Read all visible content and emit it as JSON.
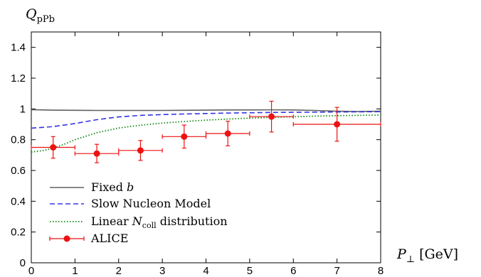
{
  "chart_data": {
    "type": "line",
    "ylabel": "Q",
    "ylabel_sub": "pPb",
    "xlabel": "P",
    "xlabel_sub": "⊥",
    "xlabel_unit": "[GeV]",
    "xlim": [
      0,
      8
    ],
    "ylim": [
      0,
      1.5
    ],
    "xticks": [
      "0",
      "1",
      "2",
      "3",
      "4",
      "5",
      "6",
      "7",
      "8"
    ],
    "yticks": [
      "0",
      "0.2",
      "0.4",
      "0.6",
      "0.8",
      "1",
      "1.2",
      "1.4"
    ],
    "legend_position": "bottom-left",
    "series": [
      {
        "name": "Fixed b",
        "style": "solid",
        "color": "#606060",
        "x": [
          0.0,
          0.5,
          1.0,
          1.5,
          2.0,
          2.5,
          3.0,
          3.5,
          4.0,
          4.5,
          5.0,
          5.5,
          6.0,
          6.5,
          7.0,
          7.5,
          8.0
        ],
        "y": [
          0.995,
          0.992,
          0.991,
          0.99,
          0.99,
          0.99,
          0.99,
          0.991,
          0.992,
          0.993,
          0.993,
          0.994,
          0.993,
          0.99,
          0.985,
          0.983,
          0.985
        ]
      },
      {
        "name": "Slow Nucleon Model",
        "style": "dashed",
        "color": "#3333e6",
        "x": [
          0.0,
          0.5,
          1.0,
          1.5,
          2.0,
          2.5,
          3.0,
          3.5,
          4.0,
          4.5,
          5.0,
          5.5,
          6.0,
          6.5,
          7.0,
          7.5,
          8.0
        ],
        "y": [
          0.875,
          0.885,
          0.905,
          0.93,
          0.948,
          0.958,
          0.963,
          0.967,
          0.97,
          0.973,
          0.975,
          0.977,
          0.978,
          0.979,
          0.98,
          0.981,
          0.982
        ]
      },
      {
        "name": "Linear N",
        "name_sub": "coll",
        "name_suffix": "distribution",
        "style": "dotted",
        "color": "#118811",
        "x": [
          0.0,
          0.25,
          0.5,
          0.75,
          1.0,
          1.5,
          2.0,
          2.5,
          3.0,
          3.5,
          4.0,
          4.5,
          5.0,
          5.5,
          6.0,
          6.5,
          7.0,
          7.5,
          8.0
        ],
        "y": [
          0.72,
          0.728,
          0.745,
          0.77,
          0.8,
          0.845,
          0.876,
          0.894,
          0.908,
          0.918,
          0.927,
          0.934,
          0.94,
          0.945,
          0.949,
          0.953,
          0.956,
          0.958,
          0.96
        ]
      },
      {
        "name": "ALICE",
        "style": "markers",
        "color": "#ee1111",
        "points": [
          {
            "x": 0.5,
            "y": 0.75,
            "xerr": 0.5,
            "yerr": 0.07
          },
          {
            "x": 1.5,
            "y": 0.71,
            "xerr": 0.5,
            "yerr": 0.06
          },
          {
            "x": 2.5,
            "y": 0.73,
            "xerr": 0.5,
            "yerr": 0.065
          },
          {
            "x": 3.5,
            "y": 0.82,
            "xerr": 0.5,
            "yerr": 0.075
          },
          {
            "x": 4.5,
            "y": 0.84,
            "xerr": 0.5,
            "yerr": 0.08
          },
          {
            "x": 5.5,
            "y": 0.95,
            "xerr": 0.5,
            "yerr": 0.1
          },
          {
            "x": 7.0,
            "y": 0.9,
            "xerr": 1.0,
            "yerr": 0.11
          }
        ]
      }
    ]
  }
}
